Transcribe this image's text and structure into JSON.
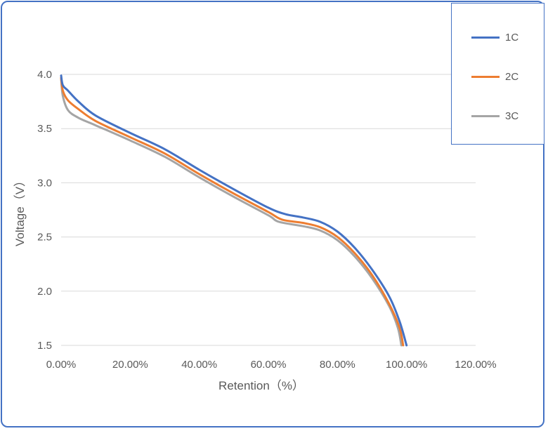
{
  "chart_data": {
    "type": "line",
    "xlabel": "Retention（%）",
    "ylabel": "Voltage（V）",
    "xlim": [
      0,
      1.2
    ],
    "ylim": [
      1.5,
      4.0
    ],
    "x_ticks": [
      "0.00%",
      "20.00%",
      "40.00%",
      "60.00%",
      "80.00%",
      "100.00%",
      "120.00%"
    ],
    "y_ticks": [
      "1.5",
      "2.0",
      "2.5",
      "3.0",
      "3.5",
      "4.0"
    ],
    "grid": true,
    "legend_position": "top-right",
    "series": [
      {
        "name": "1C",
        "color": "#4472c4",
        "points": [
          [
            0.0,
            3.99
          ],
          [
            0.005,
            3.9
          ],
          [
            0.02,
            3.85
          ],
          [
            0.05,
            3.75
          ],
          [
            0.1,
            3.62
          ],
          [
            0.2,
            3.46
          ],
          [
            0.3,
            3.31
          ],
          [
            0.4,
            3.12
          ],
          [
            0.5,
            2.94
          ],
          [
            0.6,
            2.77
          ],
          [
            0.65,
            2.71
          ],
          [
            0.7,
            2.68
          ],
          [
            0.75,
            2.64
          ],
          [
            0.8,
            2.55
          ],
          [
            0.85,
            2.4
          ],
          [
            0.9,
            2.2
          ],
          [
            0.95,
            1.95
          ],
          [
            0.98,
            1.72
          ],
          [
            1.0,
            1.5
          ]
        ]
      },
      {
        "name": "2C",
        "color": "#ed7d31",
        "points": [
          [
            0.0,
            3.97
          ],
          [
            0.005,
            3.85
          ],
          [
            0.02,
            3.76
          ],
          [
            0.05,
            3.68
          ],
          [
            0.1,
            3.57
          ],
          [
            0.2,
            3.42
          ],
          [
            0.3,
            3.27
          ],
          [
            0.4,
            3.08
          ],
          [
            0.5,
            2.9
          ],
          [
            0.6,
            2.73
          ],
          [
            0.64,
            2.66
          ],
          [
            0.7,
            2.63
          ],
          [
            0.75,
            2.59
          ],
          [
            0.8,
            2.5
          ],
          [
            0.85,
            2.35
          ],
          [
            0.9,
            2.15
          ],
          [
            0.95,
            1.88
          ],
          [
            0.98,
            1.66
          ],
          [
            0.99,
            1.5
          ]
        ]
      },
      {
        "name": "3C",
        "color": "#a5a5a5",
        "points": [
          [
            0.0,
            3.96
          ],
          [
            0.005,
            3.8
          ],
          [
            0.02,
            3.67
          ],
          [
            0.05,
            3.6
          ],
          [
            0.1,
            3.53
          ],
          [
            0.2,
            3.39
          ],
          [
            0.3,
            3.24
          ],
          [
            0.4,
            3.05
          ],
          [
            0.5,
            2.87
          ],
          [
            0.6,
            2.7
          ],
          [
            0.63,
            2.64
          ],
          [
            0.7,
            2.6
          ],
          [
            0.75,
            2.56
          ],
          [
            0.8,
            2.47
          ],
          [
            0.85,
            2.32
          ],
          [
            0.9,
            2.12
          ],
          [
            0.95,
            1.86
          ],
          [
            0.975,
            1.66
          ],
          [
            0.985,
            1.5
          ]
        ]
      }
    ]
  }
}
